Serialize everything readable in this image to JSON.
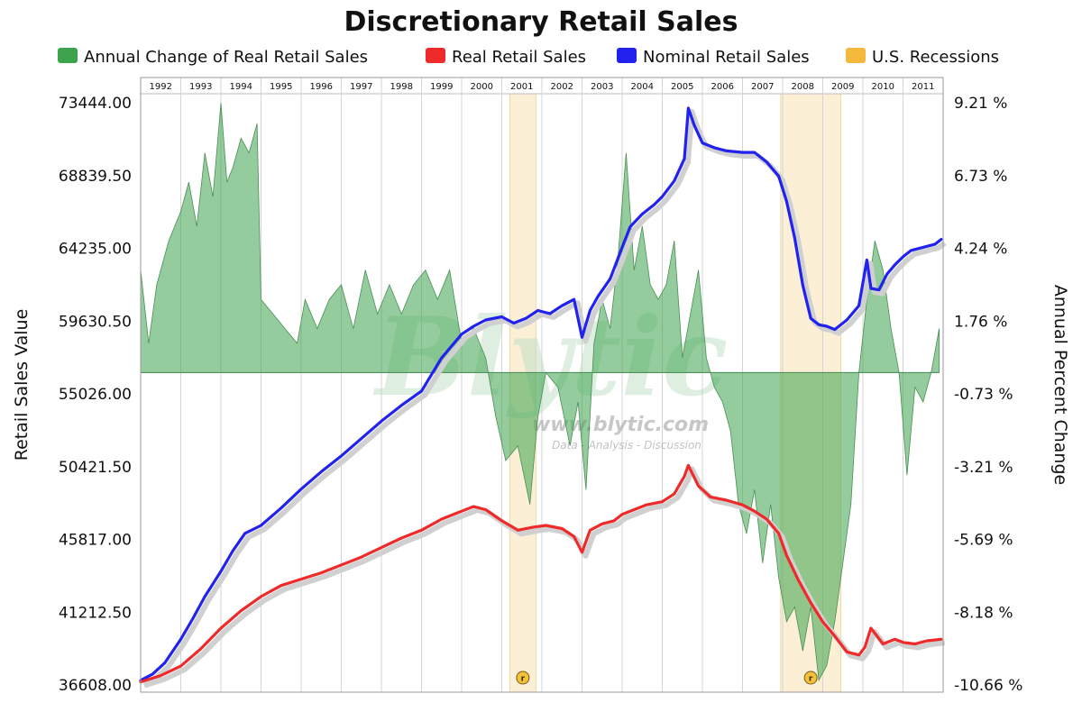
{
  "chart_data": {
    "type": "line",
    "title": "Discretionary Retail Sales",
    "ylabel": "Retail Sales Value",
    "y2label": "Annual Percent Change",
    "legend": [
      {
        "label": "Annual Change of Real Retail Sales",
        "color": "#3da34d"
      },
      {
        "label": "Real Retail Sales",
        "color": "#ee2a2a"
      },
      {
        "label": "Nominal Retail Sales",
        "color": "#2222ee"
      },
      {
        "label": "U.S. Recessions",
        "color": "#f3b83c"
      }
    ],
    "years": [
      "1992",
      "1993",
      "1994",
      "1995",
      "1996",
      "1997",
      "1998",
      "1999",
      "2000",
      "2001",
      "2002",
      "2003",
      "2004",
      "2005",
      "2006",
      "2007",
      "2008",
      "2009",
      "2010",
      "2011"
    ],
    "xlim": [
      1992.0,
      2012.0
    ],
    "ylim": [
      36608.0,
      73444.0
    ],
    "y2lim": [
      -10.66,
      9.21
    ],
    "yticks": [
      "73444.00",
      "68839.50",
      "64235.00",
      "59630.50",
      "55026.00",
      "50421.50",
      "45817.00",
      "41212.50",
      "36608.00"
    ],
    "y2ticks": [
      "9.21 %",
      "6.73 %",
      "4.24 %",
      "1.76 %",
      "-0.73 %",
      "-3.21 %",
      "-5.69 %",
      "-8.18 %",
      "-10.66 %"
    ],
    "recessions": [
      {
        "start": 2001.2,
        "end": 2001.85
      },
      {
        "start": 2007.95,
        "end": 2009.45
      }
    ],
    "recession_marker": "r",
    "series": [
      {
        "name": "Nominal Retail Sales",
        "axis": "left",
        "x": [
          1992.0,
          1992.3,
          1992.6,
          1993.0,
          1993.3,
          1993.6,
          1994.0,
          1994.3,
          1994.6,
          1995.0,
          1995.5,
          1996.0,
          1996.5,
          1997.0,
          1997.5,
          1998.0,
          1998.5,
          1999.0,
          1999.5,
          2000.0,
          2000.3,
          2000.6,
          2001.0,
          2001.3,
          2001.6,
          2001.9,
          2002.2,
          2002.5,
          2002.8,
          2003.0,
          2003.2,
          2003.4,
          2003.7,
          2004.0,
          2004.2,
          2004.5,
          2004.8,
          2005.0,
          2005.3,
          2005.55,
          2005.65,
          2005.8,
          2006.0,
          2006.3,
          2006.6,
          2007.0,
          2007.3,
          2007.6,
          2007.9,
          2008.1,
          2008.3,
          2008.5,
          2008.7,
          2008.9,
          2009.1,
          2009.3,
          2009.6,
          2009.9,
          2010.1,
          2010.2,
          2010.4,
          2010.6,
          2010.8,
          2011.0,
          2011.2,
          2011.5,
          2011.8,
          2011.95
        ],
        "values": [
          36900,
          37300,
          38000,
          39500,
          40800,
          42200,
          43800,
          45100,
          46200,
          46700,
          47800,
          49000,
          50100,
          51100,
          52200,
          53300,
          54300,
          55200,
          57300,
          58800,
          59300,
          59700,
          59900,
          59500,
          59800,
          60300,
          60100,
          60600,
          61000,
          58600,
          60300,
          61200,
          62300,
          64300,
          65600,
          66400,
          67000,
          67500,
          68500,
          69900,
          73100,
          72000,
          70900,
          70600,
          70400,
          70300,
          70300,
          69700,
          68800,
          67200,
          64900,
          61900,
          59800,
          59400,
          59300,
          59100,
          59700,
          60600,
          63500,
          61700,
          61600,
          62600,
          63200,
          63700,
          64100,
          64300,
          64500,
          64800
        ]
      },
      {
        "name": "Real Retail Sales",
        "axis": "left",
        "x": [
          1992.0,
          1992.5,
          1993.0,
          1993.5,
          1994.0,
          1994.5,
          1995.0,
          1995.5,
          1996.0,
          1996.5,
          1997.0,
          1997.5,
          1998.0,
          1998.5,
          1999.0,
          1999.5,
          2000.0,
          2000.3,
          2000.6,
          2001.0,
          2001.4,
          2001.8,
          2002.1,
          2002.5,
          2002.8,
          2003.0,
          2003.2,
          2003.5,
          2003.8,
          2004.0,
          2004.3,
          2004.6,
          2005.0,
          2005.3,
          2005.55,
          2005.65,
          2005.9,
          2006.2,
          2006.6,
          2007.0,
          2007.3,
          2007.6,
          2007.9,
          2008.1,
          2008.4,
          2008.7,
          2009.0,
          2009.3,
          2009.6,
          2009.9,
          2010.05,
          2010.2,
          2010.5,
          2010.8,
          2011.0,
          2011.3,
          2011.6,
          2011.95
        ],
        "values": [
          36800,
          37200,
          37800,
          38900,
          40200,
          41300,
          42200,
          42900,
          43300,
          43700,
          44200,
          44700,
          45300,
          45900,
          46400,
          47100,
          47600,
          47900,
          47700,
          47000,
          46400,
          46600,
          46700,
          46500,
          46000,
          45000,
          46400,
          46800,
          47000,
          47400,
          47700,
          48000,
          48200,
          48700,
          49800,
          50500,
          49200,
          48500,
          48300,
          48000,
          47600,
          47100,
          46200,
          44800,
          43200,
          41800,
          40600,
          39700,
          38700,
          38500,
          39000,
          40200,
          39200,
          39500,
          39300,
          39200,
          39400,
          39500
        ]
      },
      {
        "name": "Annual Change of Real Retail Sales",
        "axis": "right",
        "x": [
          1992.0,
          1992.2,
          1992.4,
          1992.7,
          1993.0,
          1993.2,
          1993.4,
          1993.6,
          1993.8,
          1994.0,
          1994.15,
          1994.3,
          1994.5,
          1994.7,
          1994.9,
          1995.0,
          1995.3,
          1995.6,
          1995.9,
          1996.1,
          1996.4,
          1996.7,
          1997.0,
          1997.3,
          1997.6,
          1997.9,
          1998.2,
          1998.5,
          1998.8,
          1999.1,
          1999.4,
          1999.7,
          2000.0,
          2000.3,
          2000.6,
          2000.85,
          2001.1,
          2001.4,
          2001.7,
          2001.9,
          2002.1,
          2002.4,
          2002.7,
          2002.9,
          2003.1,
          2003.3,
          2003.5,
          2003.7,
          2003.9,
          2004.1,
          2004.3,
          2004.5,
          2004.7,
          2004.9,
          2005.1,
          2005.3,
          2005.5,
          2005.7,
          2005.9,
          2006.1,
          2006.3,
          2006.5,
          2006.7,
          2006.9,
          2007.1,
          2007.3,
          2007.5,
          2007.7,
          2007.9,
          2008.1,
          2008.3,
          2008.5,
          2008.7,
          2008.9,
          2009.1,
          2009.3,
          2009.5,
          2009.7,
          2009.9,
          2010.1,
          2010.3,
          2010.5,
          2010.7,
          2010.9,
          2011.1,
          2011.3,
          2011.5,
          2011.7,
          2011.9
        ],
        "values": [
          3.5,
          1.0,
          3.0,
          4.5,
          5.5,
          6.5,
          5.0,
          7.5,
          6.0,
          9.2,
          6.5,
          7.0,
          8.0,
          7.5,
          8.5,
          2.5,
          2.0,
          1.5,
          1.0,
          2.5,
          1.5,
          2.5,
          3.0,
          1.5,
          3.5,
          2.0,
          3.0,
          2.0,
          3.0,
          3.5,
          2.5,
          3.5,
          1.0,
          1.5,
          0.5,
          -1.5,
          -3.0,
          -2.5,
          -4.5,
          -1.5,
          0.0,
          -0.5,
          -2.5,
          -1.0,
          -4.0,
          1.0,
          2.5,
          1.5,
          4.0,
          7.5,
          3.5,
          5.0,
          3.0,
          2.5,
          3.0,
          4.5,
          0.5,
          2.0,
          3.5,
          0.5,
          -0.5,
          -1.0,
          -2.0,
          -4.5,
          -5.5,
          -4.0,
          -6.5,
          -4.5,
          -7.0,
          -8.5,
          -8.0,
          -9.5,
          -8.0,
          -10.5,
          -10.0,
          -8.5,
          -6.5,
          -4.5,
          0.0,
          2.5,
          4.5,
          3.5,
          1.5,
          0.0,
          -3.5,
          -0.5,
          -1.0,
          0.0,
          1.5
        ]
      }
    ]
  },
  "watermark": {
    "brand": "Blytic",
    "url": "www.blytic.com",
    "tagline": "Data - Analysis - Discussion"
  }
}
